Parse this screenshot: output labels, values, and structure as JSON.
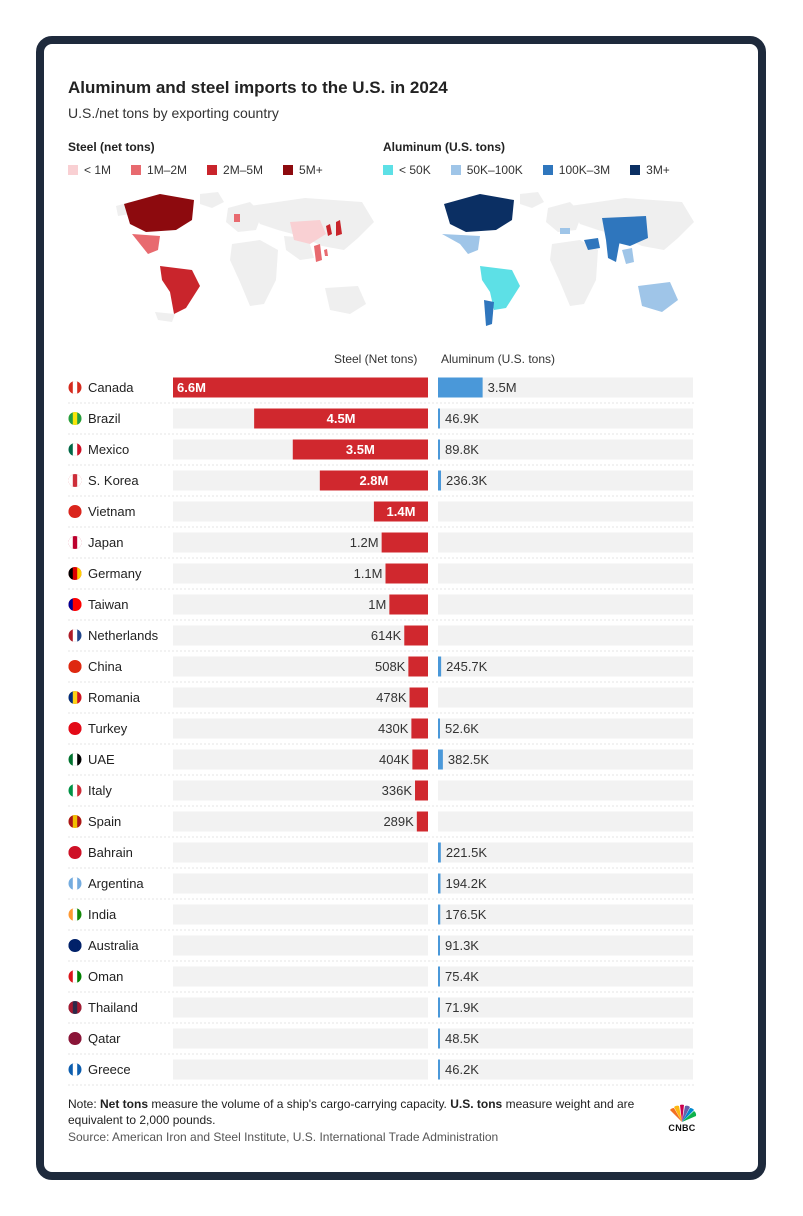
{
  "header": {
    "title": "Aluminum and steel imports to the U.S. in 2024",
    "subtitle": "U.S./net tons by exporting country"
  },
  "legends": {
    "steel": {
      "title": "Steel (net tons)",
      "items": [
        {
          "label": "< 1M",
          "color": "#f9d0d3"
        },
        {
          "label": "1M–2M",
          "color": "#e86a6f"
        },
        {
          "label": "2M–5M",
          "color": "#c9252c"
        },
        {
          "label": "5M+",
          "color": "#8d0a0e"
        }
      ]
    },
    "aluminum": {
      "title": "Aluminum (U.S. tons)",
      "items": [
        {
          "label": "< 50K",
          "color": "#5de0e6"
        },
        {
          "label": "50K–100K",
          "color": "#9fc5e8"
        },
        {
          "label": "100K–3M",
          "color": "#2f76bd"
        },
        {
          "label": "3M+",
          "color": "#0b2f63"
        }
      ]
    }
  },
  "chart_data": {
    "type": "bar",
    "column_headers": {
      "steel": "Steel (Net tons)",
      "aluminum": "Aluminum (U.S. tons)"
    },
    "colors": {
      "steel": "#d0282e",
      "aluminum": "#4a98d9",
      "track": "#f2f2f2",
      "flag_white": "#ffffff"
    },
    "steel_max": 6600000,
    "aluminum_max": 20000000,
    "series": [
      {
        "name": "Steel (Net tons)",
        "values": [
          6600000,
          4500000,
          3500000,
          2800000,
          1400000,
          1200000,
          1100000,
          1000000,
          614000,
          508000,
          478000,
          430000,
          404000,
          336000,
          289000,
          null,
          null,
          null,
          null,
          null,
          null,
          null,
          null
        ]
      },
      {
        "name": "Aluminum (U.S. tons)",
        "values": [
          3500000,
          46900,
          89800,
          236300,
          null,
          null,
          null,
          null,
          null,
          245700,
          null,
          52600,
          382500,
          null,
          null,
          221500,
          194200,
          176500,
          91300,
          75400,
          71900,
          48500,
          46200
        ]
      }
    ],
    "rows": [
      {
        "country": "Canada",
        "flag": [
          "#d52b1e",
          "#ffffff",
          "#d52b1e"
        ],
        "steel_label": "6.6M",
        "aluminum_label": "3.5M"
      },
      {
        "country": "Brazil",
        "flag": [
          "#229e45",
          "#f8e509",
          "#229e45"
        ],
        "steel_label": "4.5M",
        "aluminum_label": "46.9K"
      },
      {
        "country": "Mexico",
        "flag": [
          "#006847",
          "#ffffff",
          "#ce1126"
        ],
        "steel_label": "3.5M",
        "aluminum_label": "89.8K"
      },
      {
        "country": "S. Korea",
        "flag": [
          "#ffffff",
          "#cd2e3a",
          "#ffffff"
        ],
        "steel_label": "2.8M",
        "aluminum_label": "236.3K"
      },
      {
        "country": "Vietnam",
        "flag": [
          "#da251d",
          "#da251d",
          "#da251d"
        ],
        "steel_label": "1.4M",
        "aluminum_label": ""
      },
      {
        "country": "Japan",
        "flag": [
          "#ffffff",
          "#bc002d",
          "#ffffff"
        ],
        "steel_label": "1.2M",
        "aluminum_label": ""
      },
      {
        "country": "Germany",
        "flag": [
          "#000000",
          "#dd0000",
          "#ffce00"
        ],
        "steel_label": "1.1M",
        "aluminum_label": ""
      },
      {
        "country": "Taiwan",
        "flag": [
          "#000095",
          "#fe0000",
          "#fe0000"
        ],
        "steel_label": "1M",
        "aluminum_label": ""
      },
      {
        "country": "Netherlands",
        "flag": [
          "#ae1c28",
          "#ffffff",
          "#21468b"
        ],
        "steel_label": "614K",
        "aluminum_label": ""
      },
      {
        "country": "China",
        "flag": [
          "#de2910",
          "#de2910",
          "#de2910"
        ],
        "steel_label": "508K",
        "aluminum_label": "245.7K"
      },
      {
        "country": "Romania",
        "flag": [
          "#002b7f",
          "#fcd116",
          "#ce1126"
        ],
        "steel_label": "478K",
        "aluminum_label": ""
      },
      {
        "country": "Turkey",
        "flag": [
          "#e30a17",
          "#e30a17",
          "#e30a17"
        ],
        "steel_label": "430K",
        "aluminum_label": "52.6K"
      },
      {
        "country": "UAE",
        "flag": [
          "#00732f",
          "#ffffff",
          "#000000"
        ],
        "steel_label": "404K",
        "aluminum_label": "382.5K"
      },
      {
        "country": "Italy",
        "flag": [
          "#009246",
          "#ffffff",
          "#ce2b37"
        ],
        "steel_label": "336K",
        "aluminum_label": ""
      },
      {
        "country": "Spain",
        "flag": [
          "#aa151b",
          "#f1bf00",
          "#aa151b"
        ],
        "steel_label": "289K",
        "aluminum_label": ""
      },
      {
        "country": "Bahrain",
        "flag": [
          "#ce1126",
          "#ce1126",
          "#ce1126"
        ],
        "steel_label": "",
        "aluminum_label": "221.5K"
      },
      {
        "country": "Argentina",
        "flag": [
          "#74acdf",
          "#ffffff",
          "#74acdf"
        ],
        "steel_label": "",
        "aluminum_label": "194.2K"
      },
      {
        "country": "India",
        "flag": [
          "#ff9933",
          "#ffffff",
          "#138808"
        ],
        "steel_label": "",
        "aluminum_label": "176.5K"
      },
      {
        "country": "Australia",
        "flag": [
          "#012169",
          "#012169",
          "#012169"
        ],
        "steel_label": "",
        "aluminum_label": "91.3K"
      },
      {
        "country": "Oman",
        "flag": [
          "#db161b",
          "#ffffff",
          "#008000"
        ],
        "steel_label": "",
        "aluminum_label": "75.4K"
      },
      {
        "country": "Thailand",
        "flag": [
          "#a51931",
          "#2d2a4a",
          "#a51931"
        ],
        "steel_label": "",
        "aluminum_label": "71.9K"
      },
      {
        "country": "Qatar",
        "flag": [
          "#8a1538",
          "#8a1538",
          "#8a1538"
        ],
        "steel_label": "",
        "aluminum_label": "48.5K"
      },
      {
        "country": "Greece",
        "flag": [
          "#0d5eaf",
          "#ffffff",
          "#0d5eaf"
        ],
        "steel_label": "",
        "aluminum_label": "46.2K"
      }
    ]
  },
  "footer": {
    "note_prefix": "Note: ",
    "note_bold1": "Net tons",
    "note_mid": " measure the volume of a ship's cargo-carrying capacity. ",
    "note_bold2": "U.S. tons",
    "note_suffix": " measure weight and are equivalent to 2,000 pounds.",
    "source": "Source: American Iron and Steel Institute, U.S. International Trade Administration",
    "logo_text": "CNBC"
  }
}
